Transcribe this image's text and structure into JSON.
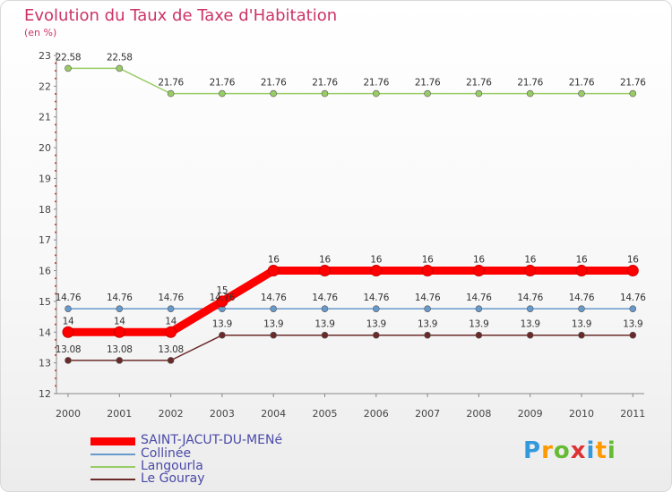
{
  "chart_data": {
    "type": "line",
    "title": "Evolution du Taux de Taxe d'Habitation",
    "subtitle": "(en %)",
    "x": [
      "2000",
      "2001",
      "2002",
      "2003",
      "2004",
      "2005",
      "2006",
      "2007",
      "2008",
      "2009",
      "2010",
      "2011"
    ],
    "ylim": [
      12,
      23
    ],
    "yticks": [
      "12",
      "13",
      "14",
      "15",
      "16",
      "17",
      "18",
      "19",
      "20",
      "21",
      "22",
      "23"
    ],
    "grid": false,
    "legend_position": "bottom-left",
    "series": [
      {
        "name": "SAINT-JACUT-DU-MENé",
        "color": "#ff0000",
        "values": [
          14,
          14,
          14,
          15,
          16,
          16,
          16,
          16,
          16,
          16,
          16,
          16
        ],
        "labels": [
          "14",
          "14",
          "14",
          "15",
          "16",
          "16",
          "16",
          "16",
          "16",
          "16",
          "16",
          "16"
        ]
      },
      {
        "name": "Collinée",
        "color": "#6699cc",
        "values": [
          14.76,
          14.76,
          14.76,
          14.76,
          14.76,
          14.76,
          14.76,
          14.76,
          14.76,
          14.76,
          14.76,
          14.76
        ],
        "labels": [
          "14.76",
          "14.76",
          "14.76",
          "14.76",
          "14.76",
          "14.76",
          "14.76",
          "14.76",
          "14.76",
          "14.76",
          "14.76",
          "14.76"
        ]
      },
      {
        "name": "Langourla",
        "color": "#99cc66",
        "values": [
          22.58,
          22.58,
          21.76,
          21.76,
          21.76,
          21.76,
          21.76,
          21.76,
          21.76,
          21.76,
          21.76,
          21.76
        ],
        "labels": [
          "22.58",
          "22.58",
          "21.76",
          "21.76",
          "21.76",
          "21.76",
          "21.76",
          "21.76",
          "21.76",
          "21.76",
          "21.76",
          "21.76"
        ]
      },
      {
        "name": "Le Gouray",
        "color": "#6b2a2a",
        "values": [
          13.08,
          13.08,
          13.08,
          13.9,
          13.9,
          13.9,
          13.9,
          13.9,
          13.9,
          13.9,
          13.9,
          13.9
        ],
        "labels": [
          "13.08",
          "13.08",
          "13.08",
          "13.9",
          "13.9",
          "13.9",
          "13.9",
          "13.9",
          "13.9",
          "13.9",
          "13.9",
          "13.9"
        ]
      }
    ]
  },
  "logo": {
    "text": "Proxiti",
    "colors": [
      "#3399dd",
      "#ff9900",
      "#66bb33",
      "#dd3333",
      "#3399dd",
      "#ff9900",
      "#66bb33"
    ]
  }
}
